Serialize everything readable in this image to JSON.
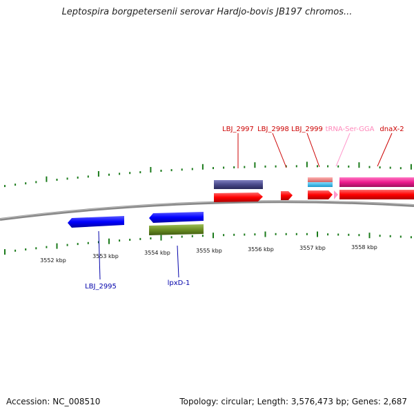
{
  "title": "Leptospira borgpetersenii serovar Hardjo-bovis JB197 chromos...",
  "footer": {
    "accession": "Accession: NC_008510",
    "topology": "Topology: circular; Length: 3,576,473 bp; Genes: 2,687"
  },
  "colors": {
    "backbone": "#888888",
    "ticks": "#1a7a1a",
    "forward_gene": "#ff0000",
    "reverse_gene": "#0000ff",
    "forward_label": "#cc0000",
    "reverse_label": "#0000aa",
    "trna": "#ff99cc",
    "trna_label": "#ff88bb",
    "feature_purple": "#4a4a8a",
    "feature_magenta": "#ee1b8e",
    "feature_salmon": "#f08080",
    "feature_cyan": "#22bbee",
    "feature_olive": "#6b8e23"
  },
  "kbp_labels": [
    "3552 kbp",
    "3553 kbp",
    "3554 kbp",
    "3555 kbp",
    "3556 kbp",
    "3557 kbp",
    "3558 kbp"
  ],
  "gene_labels": {
    "forward": [
      "LBJ_2997",
      "LBJ_2998",
      "LBJ_2999",
      "dnaX-2"
    ],
    "trna": "tRNA-Ser-GGA",
    "reverse": [
      "LBJ_2995",
      "lpxD-1"
    ]
  }
}
